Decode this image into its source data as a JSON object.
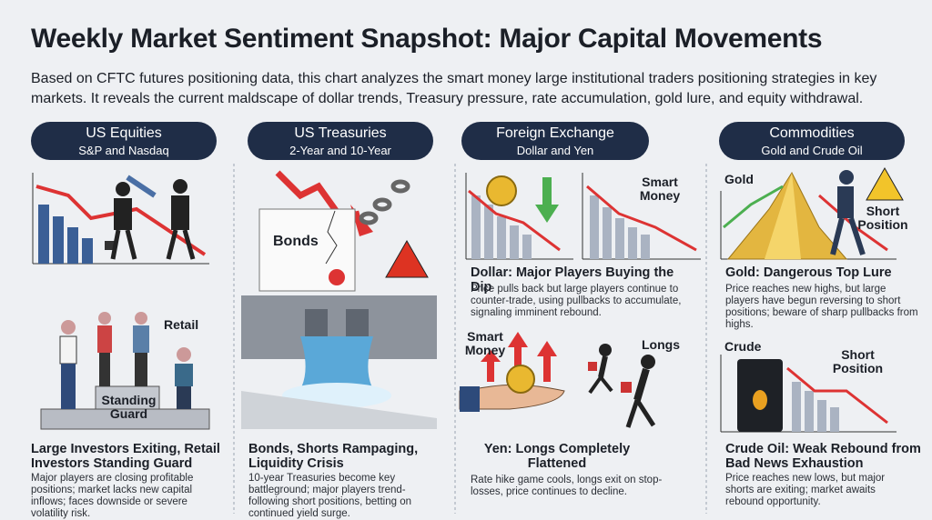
{
  "header": {
    "title": "Weekly Market Sentiment Snapshot: Major Capital Movements",
    "subtitle": "Based on CFTC futures positioning data, this chart analyzes the smart money large institutional traders positioning strategies in key markets. It reveals the current maldscape of dollar trends, Treasury pressure, rate accumulation, gold lure, and equity withdrawal."
  },
  "columns": [
    {
      "title": "US Equities",
      "subtitle": "S&P and Nasdaq",
      "illustration_labels": [
        "Retail",
        "Standing Guard"
      ],
      "sections": [
        {
          "heading": "Large Investors Exiting, Retail Investors Standing Guard",
          "body": "Major players are closing profitable positions; market lacks new capital inflows; faces downside or severe volatility risk."
        }
      ]
    },
    {
      "title": "US Treasuries",
      "subtitle": "2-Year and 10-Year",
      "illustration_labels": [
        "Bonds"
      ],
      "sections": [
        {
          "heading": "Bonds, Shorts Rampaging, Liquidity Crisis",
          "body": "10-year Treasuries become key battleground; major players trend-following short positions, betting on continued yield surge."
        }
      ]
    },
    {
      "title": "Foreign Exchange",
      "subtitle": "Dollar and Yen",
      "illustration_labels": [
        "Smart Money",
        "Smart Money",
        "Longs"
      ],
      "sections": [
        {
          "heading": "Dollar: Major Players Buying the Dip",
          "body": "Price pulls back but large players continue to counter-trade, using pullbacks to accumulate, signaling imminent rebound."
        },
        {
          "heading": "Yen: Longs Completely Flattened",
          "body": "Rate hike game cools, longs exit on stop-losses, price continues to decline."
        }
      ]
    },
    {
      "title": "Commodities",
      "subtitle": "Gold and Crude Oil",
      "illustration_labels": [
        "Gold",
        "Short Position",
        "Crude",
        "Short Position"
      ],
      "sections": [
        {
          "heading": "Gold: Dangerous Top Lure",
          "body": "Price reaches new highs, but large players have begun reversing to short positions; beware of sharp pullbacks from highs."
        },
        {
          "heading": "Crude Oil: Weak Rebound from Bad News Exhaustion",
          "body": "Price reaches new lows, but major shorts are exiting; market awaits rebound opportunity."
        }
      ]
    }
  ]
}
